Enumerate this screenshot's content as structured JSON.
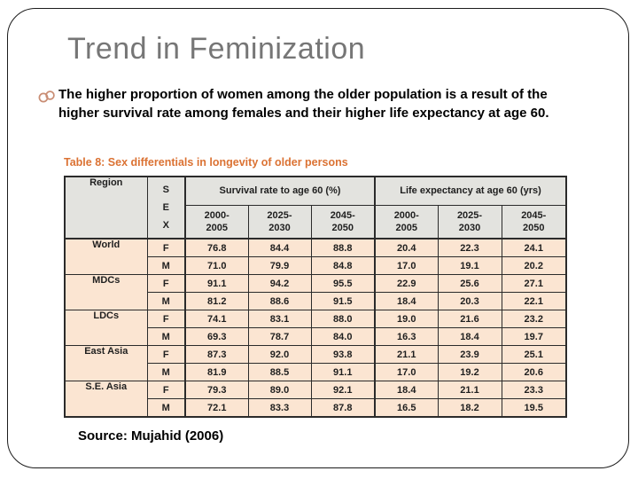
{
  "slide": {
    "title": "Trend in Feminization",
    "bullet_text": "The higher proportion of women among the older population is a result of the higher survival rate among females and their higher life expectancy at age 60.",
    "source": "Source: Mujahid (2006)"
  },
  "table": {
    "title": "Table 8: Sex differentials in longevity of older persons",
    "headers": {
      "region": "Region",
      "sex_letters": "S\nE\nX",
      "survival_group": "Survival rate to age 60 (%)",
      "life_group": "Life expectancy at age 60 (yrs)",
      "year_columns": [
        "2000-\n2005",
        "2025-\n2030",
        "2045-\n2050",
        "2000-\n2005",
        "2025-\n2030",
        "2045-\n2050"
      ]
    },
    "groups": [
      {
        "region": "World",
        "rows": [
          {
            "sex": "F",
            "values": [
              "76.8",
              "84.4",
              "88.8",
              "20.4",
              "22.3",
              "24.1"
            ]
          },
          {
            "sex": "M",
            "values": [
              "71.0",
              "79.9",
              "84.8",
              "17.0",
              "19.1",
              "20.2"
            ]
          }
        ]
      },
      {
        "region": "MDCs",
        "rows": [
          {
            "sex": "F",
            "values": [
              "91.1",
              "94.2",
              "95.5",
              "22.9",
              "25.6",
              "27.1"
            ]
          },
          {
            "sex": "M",
            "values": [
              "81.2",
              "88.6",
              "91.5",
              "18.4",
              "20.3",
              "22.1"
            ]
          }
        ]
      },
      {
        "region": "LDCs",
        "rows": [
          {
            "sex": "F",
            "values": [
              "74.1",
              "83.1",
              "88.0",
              "19.0",
              "21.6",
              "23.2"
            ]
          },
          {
            "sex": "M",
            "values": [
              "69.3",
              "78.7",
              "84.0",
              "16.3",
              "18.4",
              "19.7"
            ]
          }
        ]
      },
      {
        "region": "East Asia",
        "rows": [
          {
            "sex": "F",
            "values": [
              "87.3",
              "92.0",
              "93.8",
              "21.1",
              "23.9",
              "25.1"
            ]
          },
          {
            "sex": "M",
            "values": [
              "81.9",
              "88.5",
              "91.1",
              "17.0",
              "19.2",
              "20.6"
            ]
          }
        ]
      },
      {
        "region": "S.E. Asia",
        "rows": [
          {
            "sex": "F",
            "values": [
              "79.3",
              "89.0",
              "92.1",
              "18.4",
              "21.1",
              "23.3"
            ]
          },
          {
            "sex": "M",
            "values": [
              "72.1",
              "83.3",
              "87.8",
              "16.5",
              "18.2",
              "19.5"
            ]
          }
        ]
      }
    ]
  },
  "colors": {
    "title_gray": "#767676",
    "accent_orange": "#db7233",
    "table_header_bg": "#e3e3df",
    "table_row_bg": "#fbe5d2",
    "table_border": "#2b2b2b",
    "bullet_glyph": "#c98d74"
  }
}
